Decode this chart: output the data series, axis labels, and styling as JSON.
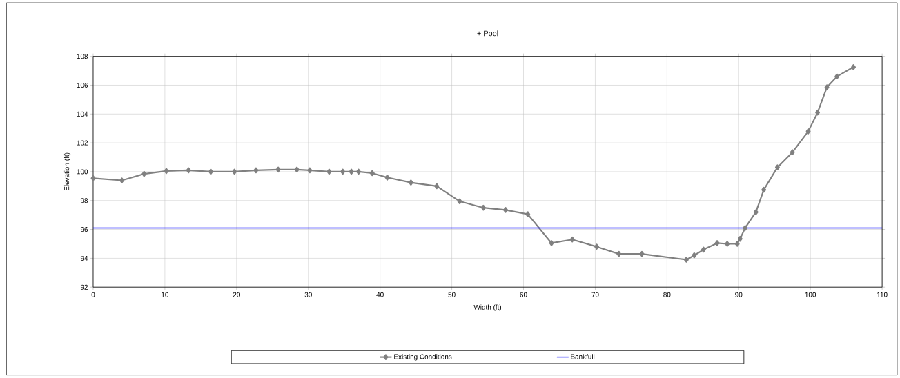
{
  "chart_data": {
    "type": "line",
    "title": "+ Pool",
    "xlabel": "Width (ft)",
    "ylabel": "Elevation (ft)",
    "x": [
      0,
      4,
      7.1,
      10.2,
      13.3,
      16.4,
      19.7,
      22.7,
      25.8,
      28.4,
      30.2,
      32.9,
      34.8,
      36.0,
      37.0,
      38.9,
      41.0,
      44.3,
      47.9,
      51.1,
      54.4,
      57.5,
      60.6,
      63.9,
      66.8,
      70.2,
      73.3,
      76.5,
      82.7,
      83.8,
      85.1,
      87.0,
      88.4,
      89.8,
      90.2,
      90.9,
      92.4,
      93.5,
      95.4,
      97.5,
      99.7,
      101.0,
      102.3,
      103.7,
      106.0
    ],
    "series": [
      {
        "name": "Existing Conditions",
        "color": "#808080",
        "values": [
          99.55,
          99.4,
          99.85,
          100.05,
          100.1,
          100.0,
          100.0,
          100.1,
          100.15,
          100.15,
          100.1,
          100.0,
          100.0,
          100.0,
          100.0,
          99.9,
          99.6,
          99.25,
          99.0,
          97.95,
          97.5,
          97.35,
          97.05,
          95.05,
          95.3,
          94.8,
          94.3,
          94.3,
          93.9,
          94.2,
          94.6,
          95.05,
          95.0,
          95.0,
          95.35,
          96.1,
          97.2,
          98.75,
          100.3,
          101.35,
          102.8,
          104.1,
          105.85,
          106.6,
          107.25
        ]
      }
    ],
    "ref_lines": [
      {
        "axis": "y",
        "value": 96.1,
        "label": "Bankfull",
        "color": "#0000ff"
      }
    ],
    "xlim": [
      0,
      110
    ],
    "xticks": [
      0,
      10,
      20,
      30,
      40,
      50,
      60,
      70,
      80,
      90,
      100,
      110
    ],
    "ylim": [
      92,
      108
    ],
    "yticks": [
      92,
      94,
      96,
      98,
      100,
      102,
      104,
      106,
      108
    ],
    "grid": true,
    "legend": "bottom",
    "marker": "diamond",
    "line_style": "solid"
  }
}
